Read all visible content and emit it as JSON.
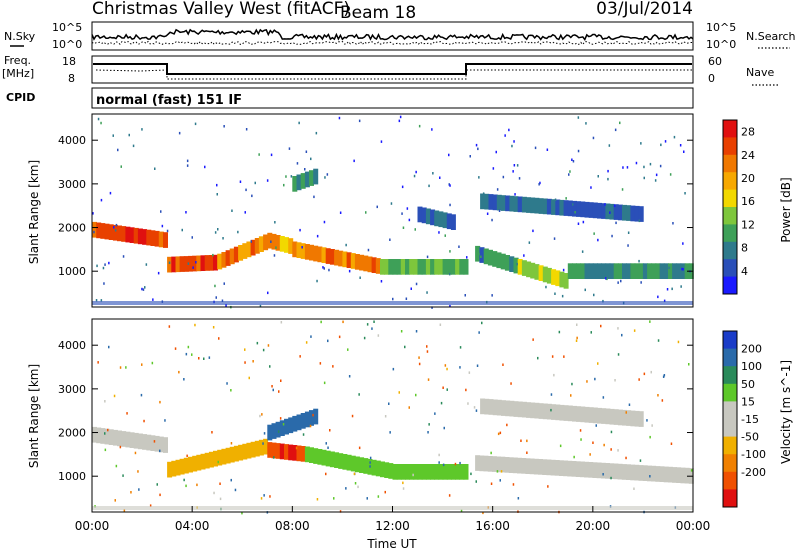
{
  "header": {
    "title": "Christmas Valley West (fitACF)",
    "beam": "Beam 18",
    "date": "03/Jul/2014"
  },
  "status_panels": {
    "nsky_label": "N.Sky",
    "nsearch_label": "N.Search",
    "freq_label_line1": "Freq.",
    "freq_label_line2": "[MHz]",
    "nave_label": "Nave",
    "cpid_label": "CPID",
    "cpid_value": "normal (fast) 151 IF",
    "noise_ticks_left": [
      "10^5",
      "10^0"
    ],
    "noise_ticks_right": [
      "10^5",
      "10^0"
    ],
    "freq_ticks_left": [
      "18",
      "8"
    ],
    "nave_ticks_right": [
      "60",
      "0"
    ]
  },
  "chart_data": [
    {
      "type": "heatmap",
      "name": "power",
      "ylabel": "Slant Range [km]",
      "yticks": [
        1000,
        2000,
        3000,
        4000
      ],
      "ylim": [
        180,
        4600
      ],
      "colorbar_label": "Power [dB]",
      "colorbar_ticks": [
        4,
        8,
        12,
        16,
        20,
        24,
        28
      ],
      "colorbar_colors": [
        "#1a1aff",
        "#2a4fb8",
        "#2e7a8c",
        "#3ea058",
        "#7ec63c",
        "#f2d800",
        "#f7a800",
        "#f07800",
        "#e84000",
        "#e01010"
      ],
      "echo_bands": [
        {
          "t0": 0.0,
          "t1": 3.0,
          "r0": 1950,
          "r1": 1700,
          "p": 26
        },
        {
          "t0": 3.0,
          "t1": 5.0,
          "r0": 1150,
          "r1": 1200,
          "p": 26
        },
        {
          "t0": 5.0,
          "t1": 7.0,
          "r0": 1220,
          "r1": 1700,
          "p": 22
        },
        {
          "t0": 7.0,
          "t1": 8.0,
          "r0": 1700,
          "r1": 1550,
          "p": 20
        },
        {
          "t0": 8.0,
          "t1": 11.5,
          "r0": 1500,
          "r1": 1100,
          "p": 22
        },
        {
          "t0": 11.5,
          "t1": 15.0,
          "r0": 1100,
          "r1": 1100,
          "p": 12
        },
        {
          "t0": 15.3,
          "t1": 17.0,
          "r0": 1400,
          "r1": 1100,
          "p": 8
        },
        {
          "t0": 17.0,
          "t1": 19.0,
          "r0": 1100,
          "r1": 750,
          "p": 16
        },
        {
          "t0": 19.0,
          "t1": 24.0,
          "r0": 1000,
          "r1": 1000,
          "p": 8
        },
        {
          "t0": 15.5,
          "t1": 22.0,
          "r0": 2600,
          "r1": 2300,
          "p": 6
        },
        {
          "t0": 13.0,
          "t1": 14.5,
          "r0": 2300,
          "r1": 2100,
          "p": 6
        },
        {
          "t0": 8.0,
          "t1": 9.0,
          "r0": 3000,
          "r1": 3200,
          "p": 10
        }
      ]
    },
    {
      "type": "heatmap",
      "name": "velocity",
      "ylabel": "Slant Range [km]",
      "xlabel": "Time UT",
      "xticks": [
        "00:00",
        "04:00",
        "08:00",
        "12:00",
        "16:00",
        "20:00",
        "00:00"
      ],
      "xlim": [
        0,
        24
      ],
      "yticks": [
        1000,
        2000,
        3000,
        4000
      ],
      "ylim": [
        180,
        4600
      ],
      "colorbar_label": "Velocity [m s^-1]",
      "colorbar_ticks": [
        200,
        100,
        50,
        15,
        -15,
        -50,
        -100,
        -200
      ],
      "colorbar_colors": [
        "#1a3cc8",
        "#2a6aaa",
        "#2a8a5a",
        "#5ec82a",
        "#c8c8c0",
        "#c8c8c0",
        "#f0b000",
        "#f08000",
        "#f05000",
        "#e01010"
      ],
      "echo_bands": [
        {
          "t0": 0.0,
          "t1": 3.0,
          "r0": 1950,
          "r1": 1700,
          "v": 0
        },
        {
          "t0": 3.0,
          "t1": 7.0,
          "r0": 1150,
          "r1": 1700,
          "v": -30
        },
        {
          "t0": 7.0,
          "t1": 8.5,
          "r0": 1600,
          "r1": 1500,
          "v": -200
        },
        {
          "t0": 8.5,
          "t1": 12.0,
          "r0": 1500,
          "r1": 1100,
          "v": 40
        },
        {
          "t0": 12.0,
          "t1": 15.0,
          "r0": 1100,
          "r1": 1100,
          "v": 30
        },
        {
          "t0": 15.3,
          "t1": 24.0,
          "r0": 1300,
          "r1": 1000,
          "v": 0
        },
        {
          "t0": 7.0,
          "t1": 9.0,
          "r0": 2000,
          "r1": 2400,
          "v": 150
        },
        {
          "t0": 15.5,
          "t1": 22.0,
          "r0": 2600,
          "r1": 2300,
          "v": 0
        }
      ]
    }
  ]
}
